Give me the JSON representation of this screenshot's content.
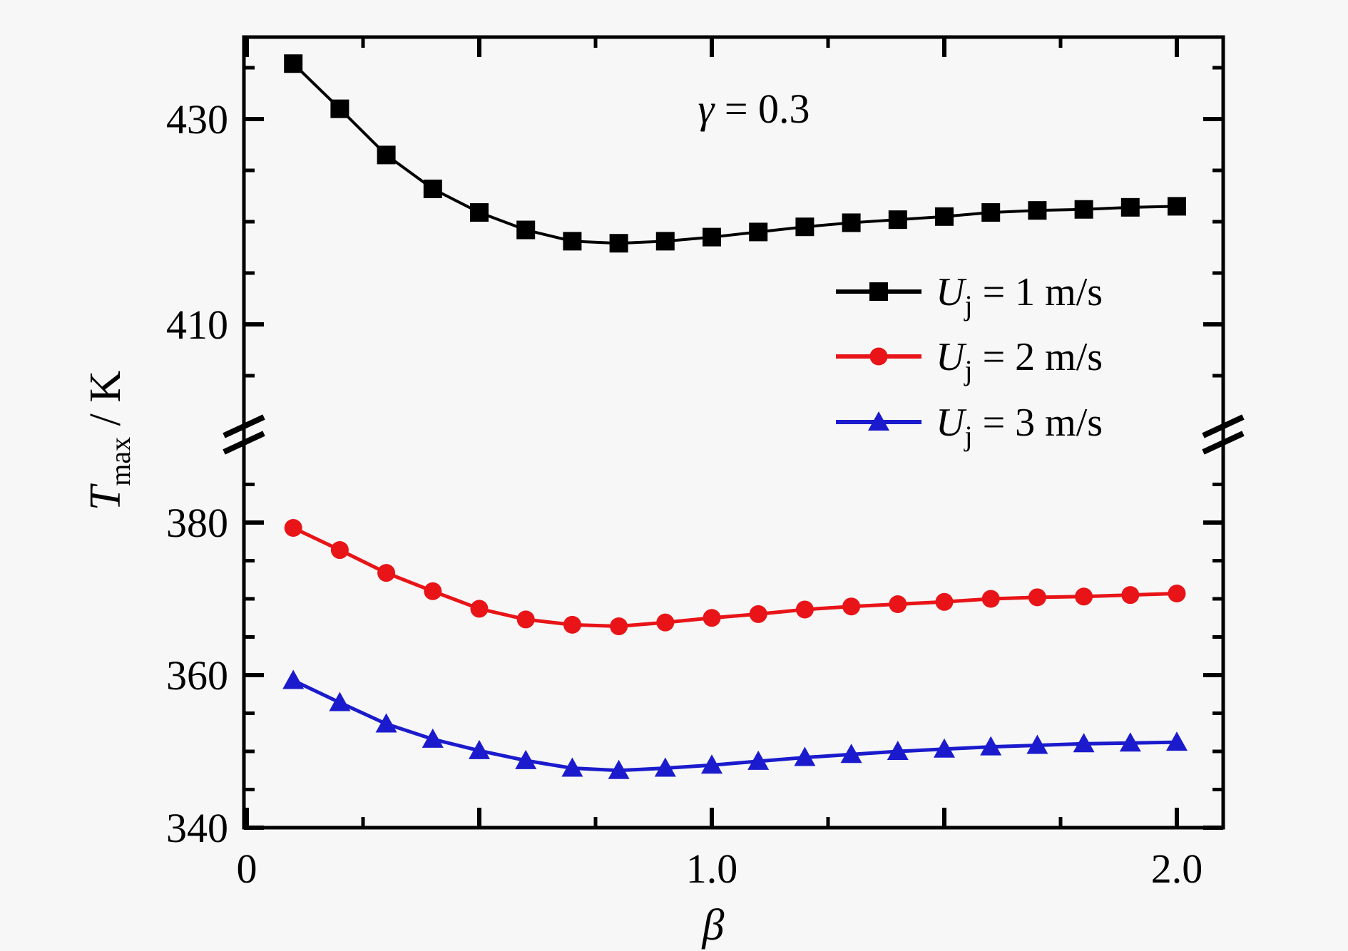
{
  "figure": {
    "background": "#f7f7f7",
    "annotation": {
      "symbol": "γ",
      "rest": " = 0.3",
      "full_text": "γ = 0.3"
    }
  },
  "chart_data": {
    "type": "line",
    "title": "",
    "xlabel": "β",
    "ylabel": "T_max / K",
    "ylabel_parts": {
      "main": "T",
      "sub": "max",
      "unit": " / K"
    },
    "annotation": "γ = 0.3",
    "x": [
      0.1,
      0.2,
      0.3,
      0.4,
      0.5,
      0.6,
      0.7,
      0.8,
      0.9,
      1.0,
      1.1,
      1.2,
      1.3,
      1.4,
      1.5,
      1.6,
      1.7,
      1.8,
      1.9,
      2.0
    ],
    "series": [
      {
        "name": "Uj = 1 m/s",
        "legend_parts": {
          "var": "U",
          "sub": "j",
          "rest": " = 1 m/s"
        },
        "color": "#000000",
        "marker": "square",
        "axis_segment": "upper",
        "values": [
          435.4,
          431.0,
          426.5,
          423.2,
          420.9,
          419.2,
          418.1,
          417.9,
          418.1,
          418.5,
          419.0,
          419.5,
          419.9,
          420.2,
          420.5,
          420.9,
          421.1,
          421.2,
          421.4,
          421.5
        ]
      },
      {
        "name": "Uj = 2 m/s",
        "legend_parts": {
          "var": "U",
          "sub": "j",
          "rest": " = 2 m/s"
        },
        "color": "#e81418",
        "marker": "circle",
        "axis_segment": "lower",
        "values": [
          379.3,
          376.4,
          373.4,
          371.0,
          368.7,
          367.3,
          366.6,
          366.4,
          366.9,
          367.5,
          368.0,
          368.6,
          369.0,
          369.3,
          369.6,
          370.0,
          370.2,
          370.3,
          370.5,
          370.7
        ]
      },
      {
        "name": "Uj = 3 m/s",
        "legend_parts": {
          "var": "U",
          "sub": "j",
          "rest": " = 3 m/s"
        },
        "color": "#1b1bcd",
        "marker": "triangle",
        "axis_segment": "lower",
        "values": [
          359.3,
          356.4,
          353.6,
          351.6,
          350.1,
          348.8,
          347.8,
          347.5,
          347.8,
          348.2,
          348.7,
          349.2,
          349.6,
          350.0,
          350.3,
          350.6,
          350.8,
          351.0,
          351.1,
          351.2
        ]
      }
    ],
    "x_axis": {
      "label": "β",
      "range": [
        0,
        2.1
      ],
      "major_ticks": [
        0,
        0.5,
        1.0,
        1.5,
        2.0
      ],
      "minor_ticks": [
        0.25,
        0.75,
        1.25,
        1.75
      ],
      "tick_labels": [
        {
          "value": 0,
          "label": "0"
        },
        {
          "value": 1.0,
          "label": "1.0"
        },
        {
          "value": 2.0,
          "label": "2.0"
        }
      ]
    },
    "y_axis": {
      "unit": "K",
      "broken": true,
      "upper_segment": {
        "range": [
          400.5,
          438.3
        ],
        "labeled_ticks": [
          {
            "value": 430,
            "label": "430"
          },
          {
            "value": 410,
            "label": "410"
          }
        ],
        "minor_ticks": [
          435,
          425,
          420,
          415,
          405
        ]
      },
      "lower_segment": {
        "range": [
          340,
          388.6
        ],
        "labeled_ticks": [
          {
            "value": 380,
            "label": "380"
          },
          {
            "value": 360,
            "label": "360"
          },
          {
            "value": 340,
            "label": "340"
          }
        ],
        "minor_ticks": [
          385,
          375,
          370,
          365,
          355,
          350,
          345
        ]
      }
    },
    "legend_position": "right-middle",
    "grid": false
  }
}
